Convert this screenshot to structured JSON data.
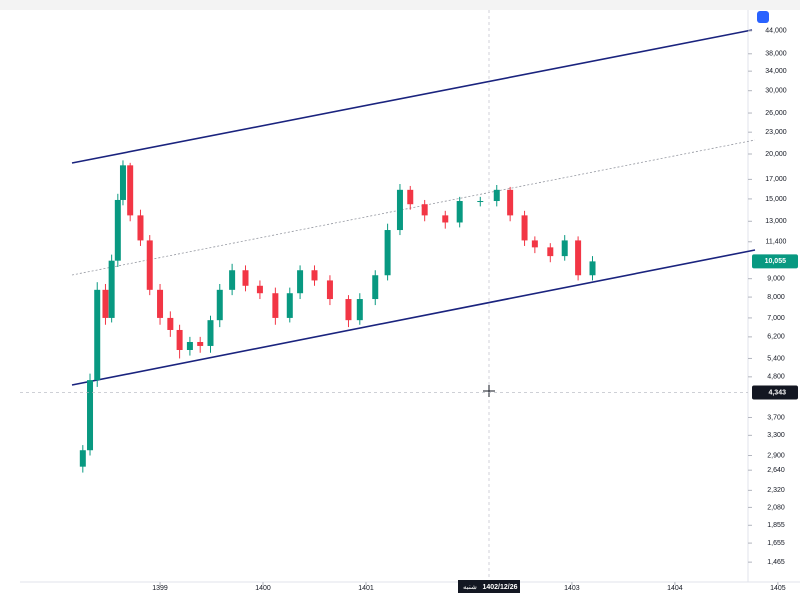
{
  "chart_data": {
    "type": "candlestick",
    "log_y": true,
    "up_color": "#089981",
    "down_color": "#f23645",
    "x": [
      1398.25,
      1398.32,
      1398.39,
      1398.47,
      1398.53,
      1398.59,
      1398.64,
      1398.71,
      1398.81,
      1398.9,
      1399.0,
      1399.1,
      1399.19,
      1399.29,
      1399.39,
      1399.49,
      1399.58,
      1399.7,
      1399.83,
      1399.97,
      1400.12,
      1400.26,
      1400.36,
      1400.5,
      1400.65,
      1400.83,
      1400.94,
      1401.09,
      1401.21,
      1401.33,
      1401.43,
      1401.57,
      1401.77,
      1401.91,
      1402.11,
      1402.27,
      1402.4,
      1402.54,
      1402.64,
      1402.79,
      1402.93,
      1403.06,
      1403.2
    ],
    "open": [
      2700,
      3000,
      4700,
      8380,
      7000,
      10100,
      14900,
      18600,
      13500,
      11500,
      8380,
      7000,
      6480,
      5700,
      6000,
      5850,
      6900,
      8380,
      9500,
      8600,
      8200,
      7000,
      8200,
      9500,
      8900,
      7900,
      6900,
      7900,
      9200,
      12290,
      15900,
      14500,
      13500,
      12900,
      14800,
      14800,
      15900,
      13500,
      11500,
      11000,
      10400,
      11500,
      9200
    ],
    "high": [
      3100,
      4900,
      8800,
      8700,
      10500,
      15500,
      19200,
      18900,
      14000,
      11900,
      8700,
      7300,
      6700,
      6200,
      6200,
      7100,
      8700,
      9900,
      9800,
      8900,
      8500,
      8500,
      9800,
      9800,
      9200,
      8100,
      8200,
      9500,
      12800,
      16500,
      16300,
      14900,
      13900,
      15200,
      15200,
      16400,
      16200,
      13900,
      11800,
      11300,
      11900,
      11800,
      10400
    ],
    "low": [
      2600,
      2900,
      4500,
      6700,
      6800,
      9700,
      14400,
      13000,
      11100,
      8100,
      6700,
      6200,
      5400,
      5500,
      5600,
      5600,
      6600,
      8100,
      8300,
      7900,
      6700,
      6800,
      7900,
      8600,
      7600,
      6600,
      6700,
      7600,
      8900,
      11900,
      14000,
      13000,
      12400,
      12500,
      14300,
      14300,
      13000,
      11100,
      10600,
      10000,
      10100,
      8900,
      8900
    ],
    "close": [
      3000,
      4700,
      8380,
      7000,
      10100,
      14900,
      18600,
      13500,
      11500,
      8380,
      7000,
      6480,
      5700,
      6000,
      5850,
      6900,
      8380,
      9500,
      8600,
      8200,
      7000,
      8200,
      9500,
      8900,
      7900,
      6900,
      7900,
      9200,
      12290,
      15900,
      14500,
      13500,
      12900,
      14800,
      14800,
      15900,
      13500,
      11500,
      11000,
      10400,
      11500,
      9200,
      10055
    ],
    "xlim": [
      1397.64,
      1404.71
    ],
    "xticks": [
      1399,
      1400,
      1401,
      1403,
      1404,
      1405
    ],
    "ylim": [
      1290,
      50300
    ],
    "yticks": [
      {
        "value": 44000,
        "label": "44,000"
      },
      {
        "value": 38000,
        "label": "38,000"
      },
      {
        "value": 34000,
        "label": "34,000"
      },
      {
        "value": 30000,
        "label": "30,000"
      },
      {
        "value": 26000,
        "label": "26,000"
      },
      {
        "value": 23000,
        "label": "23,000"
      },
      {
        "value": 20000,
        "label": "20,000"
      },
      {
        "value": 17000,
        "label": "17,000"
      },
      {
        "value": 15000,
        "label": "15,000"
      },
      {
        "value": 13000,
        "label": "13,000"
      },
      {
        "value": 11400,
        "label": "11,400"
      },
      {
        "value": 9000,
        "label": "9,000"
      },
      {
        "value": 8000,
        "label": "8,000"
      },
      {
        "value": 7000,
        "label": "7,000"
      },
      {
        "value": 6200,
        "label": "6,200"
      },
      {
        "value": 5400,
        "label": "5,400"
      },
      {
        "value": 4800,
        "label": "4,800"
      },
      {
        "value": 3700,
        "label": "3,700"
      },
      {
        "value": 3300,
        "label": "3,300"
      },
      {
        "value": 2900,
        "label": "2,900"
      },
      {
        "value": 2640,
        "label": "2,640"
      },
      {
        "value": 2320,
        "label": "2,320"
      },
      {
        "value": 2080,
        "label": "2,080"
      },
      {
        "value": 1855,
        "label": "1,855"
      },
      {
        "value": 1655,
        "label": "1,655"
      },
      {
        "value": 1465,
        "label": "1,465"
      }
    ],
    "annotations": [
      {
        "value": 10055,
        "label": "10,055",
        "color": "#089981"
      },
      {
        "value": 4343,
        "label": "4,343",
        "color": "#131722"
      }
    ],
    "crosshair_date": "1402/12/26",
    "crosshair_day": "شنبه"
  }
}
